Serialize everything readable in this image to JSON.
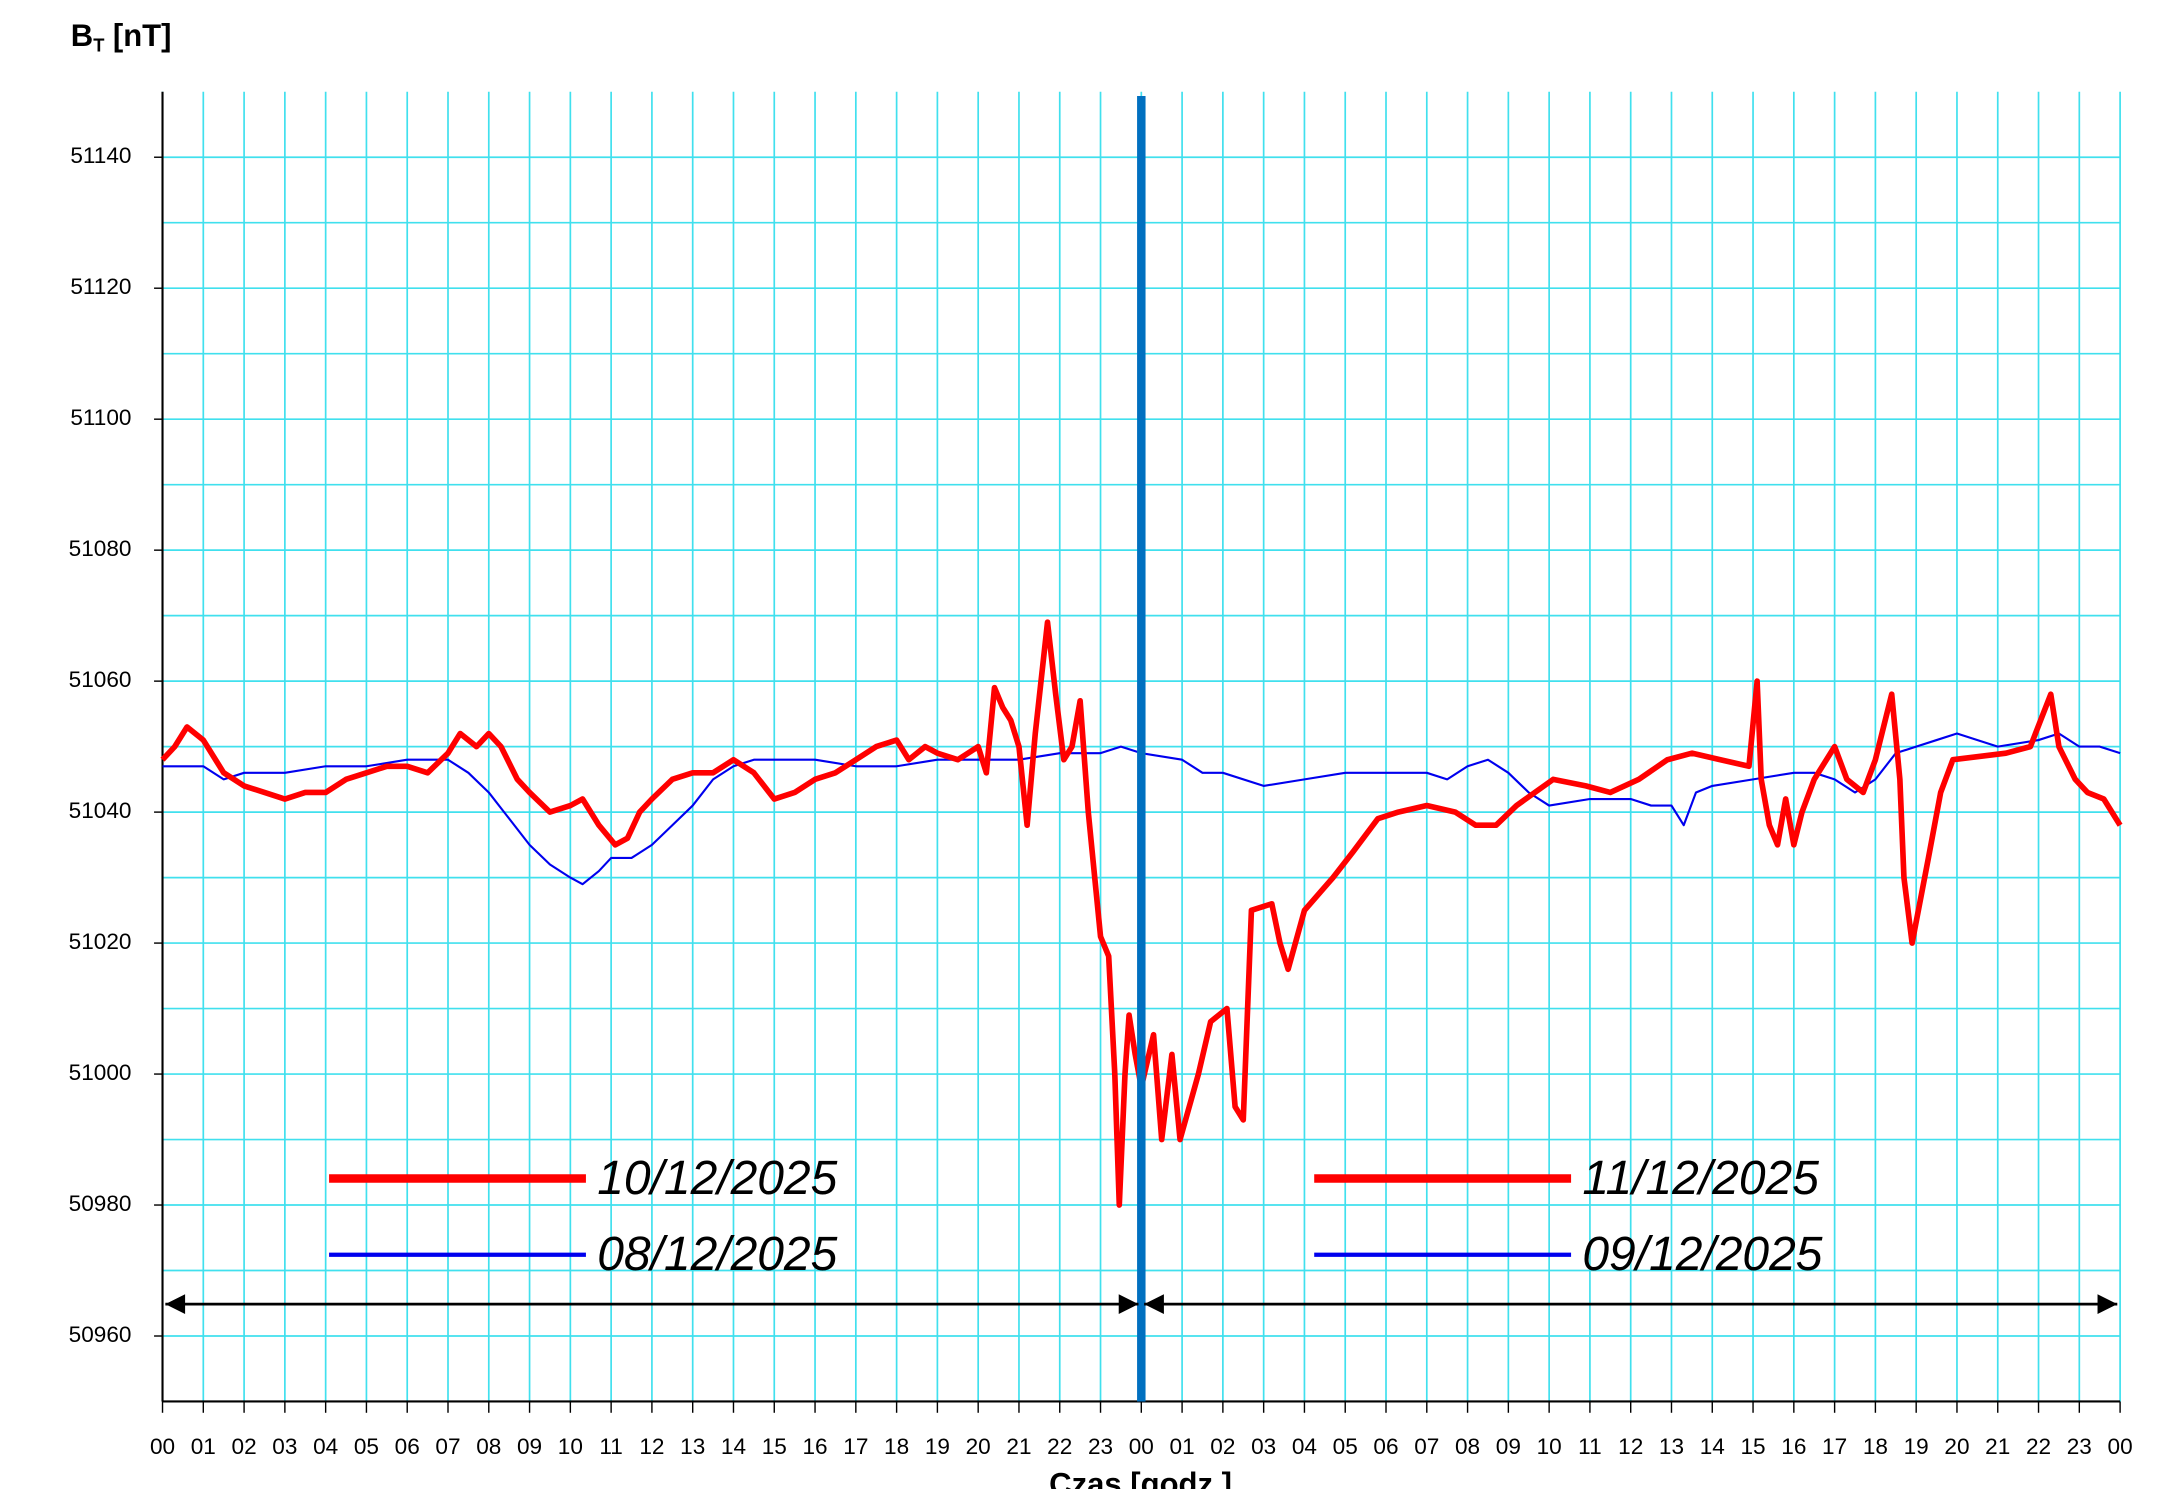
{
  "chart_data": {
    "type": "line",
    "y_label": {
      "main": "B",
      "sub": "T",
      "rest": "[nT]"
    },
    "x_label": "Czas [godz.]",
    "xlim": [
      0,
      48
    ],
    "ylim": [
      50950,
      51150
    ],
    "yticks": [
      50960,
      50980,
      51000,
      51020,
      51040,
      51060,
      51080,
      51100,
      51120,
      51140
    ],
    "y_minor_grid": [
      50970,
      50990,
      51010,
      51030,
      51050,
      51070,
      51090,
      51110,
      51130
    ],
    "xticks": [
      {
        "value": 0,
        "label": "00"
      },
      {
        "value": 1,
        "label": "01"
      },
      {
        "value": 2,
        "label": "02"
      },
      {
        "value": 3,
        "label": "03"
      },
      {
        "value": 4,
        "label": "04"
      },
      {
        "value": 5,
        "label": "05"
      },
      {
        "value": 6,
        "label": "06"
      },
      {
        "value": 7,
        "label": "07"
      },
      {
        "value": 8,
        "label": "08"
      },
      {
        "value": 9,
        "label": "09"
      },
      {
        "value": 10,
        "label": "10"
      },
      {
        "value": 11,
        "label": "11"
      },
      {
        "value": 12,
        "label": "12"
      },
      {
        "value": 13,
        "label": "13"
      },
      {
        "value": 14,
        "label": "14"
      },
      {
        "value": 15,
        "label": "15"
      },
      {
        "value": 16,
        "label": "16"
      },
      {
        "value": 17,
        "label": "17"
      },
      {
        "value": 18,
        "label": "18"
      },
      {
        "value": 19,
        "label": "19"
      },
      {
        "value": 20,
        "label": "20"
      },
      {
        "value": 21,
        "label": "21"
      },
      {
        "value": 22,
        "label": "22"
      },
      {
        "value": 23,
        "label": "23"
      },
      {
        "value": 24,
        "label": "00"
      },
      {
        "value": 25,
        "label": "01"
      },
      {
        "value": 26,
        "label": "02"
      },
      {
        "value": 27,
        "label": "03"
      },
      {
        "value": 28,
        "label": "04"
      },
      {
        "value": 29,
        "label": "05"
      },
      {
        "value": 30,
        "label": "06"
      },
      {
        "value": 31,
        "label": "07"
      },
      {
        "value": 32,
        "label": "08"
      },
      {
        "value": 33,
        "label": "09"
      },
      {
        "value": 34,
        "label": "10"
      },
      {
        "value": 35,
        "label": "11"
      },
      {
        "value": 36,
        "label": "12"
      },
      {
        "value": 37,
        "label": "13"
      },
      {
        "value": 38,
        "label": "14"
      },
      {
        "value": 39,
        "label": "15"
      },
      {
        "value": 40,
        "label": "16"
      },
      {
        "value": 41,
        "label": "17"
      },
      {
        "value": 42,
        "label": "18"
      },
      {
        "value": 43,
        "label": "19"
      },
      {
        "value": 44,
        "label": "20"
      },
      {
        "value": 45,
        "label": "21"
      },
      {
        "value": 46,
        "label": "22"
      },
      {
        "value": 47,
        "label": "23"
      },
      {
        "value": 48,
        "label": "00"
      }
    ],
    "grid": true,
    "grid_color": "#40e0ee",
    "divider": {
      "x": 24,
      "color": "#0070c0"
    },
    "series": [
      {
        "name": "10/12/2025",
        "color": "#ff0000",
        "width": 4,
        "x": [
          0,
          0.3,
          0.6,
          1,
          1.5,
          2,
          2.5,
          3,
          3.5,
          4,
          4.5,
          5,
          5.5,
          6,
          6.5,
          7,
          7.3,
          7.7,
          8,
          8.3,
          8.7,
          9,
          9.5,
          10,
          10.3,
          10.7,
          11.1,
          11.4,
          11.7,
          12,
          12.5,
          13,
          13.5,
          14,
          14.5,
          15,
          15.5,
          16,
          16.5,
          17,
          17.5,
          18,
          18.3,
          18.7,
          19,
          19.5,
          20,
          20.2,
          20.4,
          20.6,
          20.8,
          21,
          21.2,
          21.4,
          21.7,
          21.9,
          22.1,
          22.3,
          22.5,
          22.7,
          23,
          23.2,
          23.35,
          23.46,
          23.6,
          23.7,
          23.85,
          24
        ],
        "values": [
          51048,
          51050,
          51053,
          51051,
          51046,
          51044,
          51043,
          51042,
          51043,
          51043,
          51045,
          51046,
          51047,
          51047,
          51046,
          51049,
          51052,
          51050,
          51052,
          51050,
          51045,
          51043,
          51040,
          51041,
          51042,
          51038,
          51035,
          51036,
          51040,
          51042,
          51045,
          51046,
          51046,
          51048,
          51046,
          51042,
          51043,
          51045,
          51046,
          51048,
          51050,
          51051,
          51048,
          51050,
          51049,
          51048,
          51050,
          51046,
          51059,
          51056,
          51054,
          51050,
          51038,
          51052,
          51069,
          51058,
          51048,
          51050,
          51057,
          51040,
          51021,
          51018,
          51000,
          50980,
          51000,
          51009,
          51003,
          50998
        ]
      },
      {
        "name": "08/12/2025",
        "color": "#0000ee",
        "width": 1.5,
        "x": [
          0,
          1,
          1.5,
          2,
          3,
          4,
          5,
          6,
          7,
          7.5,
          8,
          8.5,
          9,
          9.5,
          10,
          10.3,
          10.7,
          11,
          11.5,
          12,
          12.5,
          13,
          13.5,
          14,
          14.5,
          15,
          16,
          17,
          18,
          19,
          20,
          21,
          22,
          23,
          23.5,
          24
        ],
        "values": [
          51047,
          51047,
          51045,
          51046,
          51046,
          51047,
          51047,
          51048,
          51048,
          51046,
          51043,
          51039,
          51035,
          51032,
          51030,
          51029,
          51031,
          51033,
          51033,
          51035,
          51038,
          51041,
          51045,
          51047,
          51048,
          51048,
          51048,
          51047,
          51047,
          51048,
          51048,
          51048,
          51049,
          51049,
          51050,
          51049
        ]
      },
      {
        "name": "11/12/2025",
        "color": "#ff0000",
        "width": 4,
        "x": [
          24,
          24.3,
          24.5,
          24.75,
          24.95,
          25.4,
          25.7,
          26.1,
          26.3,
          26.5,
          26.7,
          27.2,
          27.4,
          27.6,
          28,
          28.7,
          29.2,
          29.8,
          30.3,
          31,
          31.7,
          32.2,
          32.7,
          33.2,
          34.1,
          34.9,
          35.5,
          36.2,
          36.9,
          37.5,
          38.2,
          38.9,
          39.1,
          39.2,
          39.4,
          39.6,
          39.8,
          40,
          40.2,
          40.5,
          41,
          41.3,
          41.7,
          42,
          42.4,
          42.6,
          42.7,
          42.9,
          43.3,
          43.6,
          43.9,
          45.2,
          45.8,
          46.3,
          46.5,
          46.9,
          47.2,
          47.6,
          48
        ],
        "values": [
          50998,
          51006,
          50990,
          51003,
          50990,
          51000,
          51008,
          51010,
          50995,
          50993,
          51025,
          51026,
          51020,
          51016,
          51025,
          51030,
          51034,
          51039,
          51040,
          51041,
          51040,
          51038,
          51038,
          51041,
          51045,
          51044,
          51043,
          51045,
          51048,
          51049,
          51048,
          51047,
          51060,
          51045,
          51038,
          51035,
          51042,
          51035,
          51040,
          51045,
          51050,
          51045,
          51043,
          51048,
          51058,
          51045,
          51030,
          51020,
          51033,
          51043,
          51048,
          51049,
          51050,
          51058,
          51050,
          51045,
          51043,
          51042,
          51038
        ]
      },
      {
        "name": "09/12/2025",
        "color": "#0000ee",
        "width": 1.5,
        "x": [
          24,
          25,
          25.5,
          26,
          27,
          28,
          29,
          30,
          31,
          31.5,
          32,
          32.5,
          33,
          33.5,
          34,
          35,
          36,
          36.5,
          37,
          37.3,
          37.6,
          38,
          39,
          40,
          40.5,
          41,
          41.5,
          42,
          42.5,
          43,
          43.5,
          44,
          45,
          46,
          46.5,
          47,
          47.5,
          48
        ],
        "values": [
          51049,
          51048,
          51046,
          51046,
          51044,
          51045,
          51046,
          51046,
          51046,
          51045,
          51047,
          51048,
          51046,
          51043,
          51041,
          51042,
          51042,
          51041,
          51041,
          51038,
          51043,
          51044,
          51045,
          51046,
          51046,
          51045,
          51043,
          51045,
          51049,
          51050,
          51051,
          51052,
          51050,
          51051,
          51052,
          51050,
          51050,
          51049
        ]
      }
    ]
  }
}
